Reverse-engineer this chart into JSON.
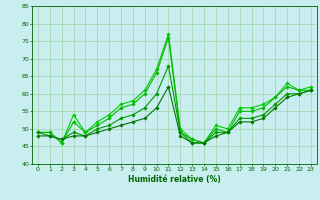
{
  "x": [
    0,
    1,
    2,
    3,
    4,
    5,
    6,
    7,
    8,
    9,
    10,
    11,
    12,
    13,
    14,
    15,
    16,
    17,
    18,
    19,
    20,
    21,
    22,
    23
  ],
  "lines": [
    [
      49,
      49,
      46,
      54,
      49,
      52,
      54,
      57,
      58,
      61,
      67,
      77,
      50,
      47,
      46,
      51,
      50,
      56,
      56,
      57,
      59,
      63,
      61,
      62
    ],
    [
      49,
      49,
      46,
      52,
      49,
      51,
      53,
      56,
      57,
      60,
      66,
      76,
      49,
      47,
      46,
      50,
      49,
      55,
      55,
      56,
      59,
      62,
      61,
      61
    ],
    [
      49,
      48,
      47,
      49,
      48,
      50,
      51,
      53,
      54,
      56,
      60,
      68,
      49,
      46,
      46,
      49,
      49,
      53,
      53,
      54,
      57,
      60,
      60,
      61
    ],
    [
      48,
      48,
      47,
      48,
      48,
      49,
      50,
      51,
      52,
      53,
      56,
      62,
      48,
      46,
      46,
      48,
      49,
      52,
      52,
      53,
      56,
      59,
      60,
      61
    ]
  ],
  "line_colors": [
    "#00cc00",
    "#00bb00",
    "#009900",
    "#007700"
  ],
  "marker": "D",
  "markersize": 1.8,
  "linewidth": 0.8,
  "bg_color": "#c8eef0",
  "grid_color": "#99cc99",
  "axis_color": "#006600",
  "tick_color": "#006600",
  "label_color": "#006600",
  "xlabel": "Humidité relative (%)",
  "ylim": [
    40,
    85
  ],
  "yticks": [
    40,
    45,
    50,
    55,
    60,
    65,
    70,
    75,
    80,
    85
  ],
  "xlim": [
    -0.5,
    23.5
  ],
  "xticks": [
    0,
    1,
    2,
    3,
    4,
    5,
    6,
    7,
    8,
    9,
    10,
    11,
    12,
    13,
    14,
    15,
    16,
    17,
    18,
    19,
    20,
    21,
    22,
    23
  ]
}
